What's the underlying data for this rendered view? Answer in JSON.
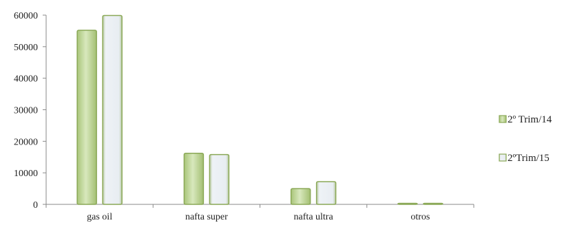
{
  "chart_data": {
    "type": "bar",
    "title": "",
    "xlabel": "",
    "ylabel": "",
    "categories": [
      "gas oil",
      "nafta super",
      "nafta ultra",
      "otros"
    ],
    "series": [
      {
        "name": "2º Trim/14",
        "values": [
          55200,
          16200,
          5000,
          150
        ],
        "color": "#c7dba3",
        "edge": "#8aa856"
      },
      {
        "name": "2ºTrim/15",
        "values": [
          59900,
          15800,
          7200,
          150
        ],
        "color": "#e9eef3",
        "edge": "#8aa856"
      }
    ],
    "ylim": [
      0,
      60000
    ],
    "yticks": [
      0,
      10000,
      20000,
      30000,
      40000,
      50000,
      60000
    ],
    "grid": false,
    "legend_position": "right"
  }
}
